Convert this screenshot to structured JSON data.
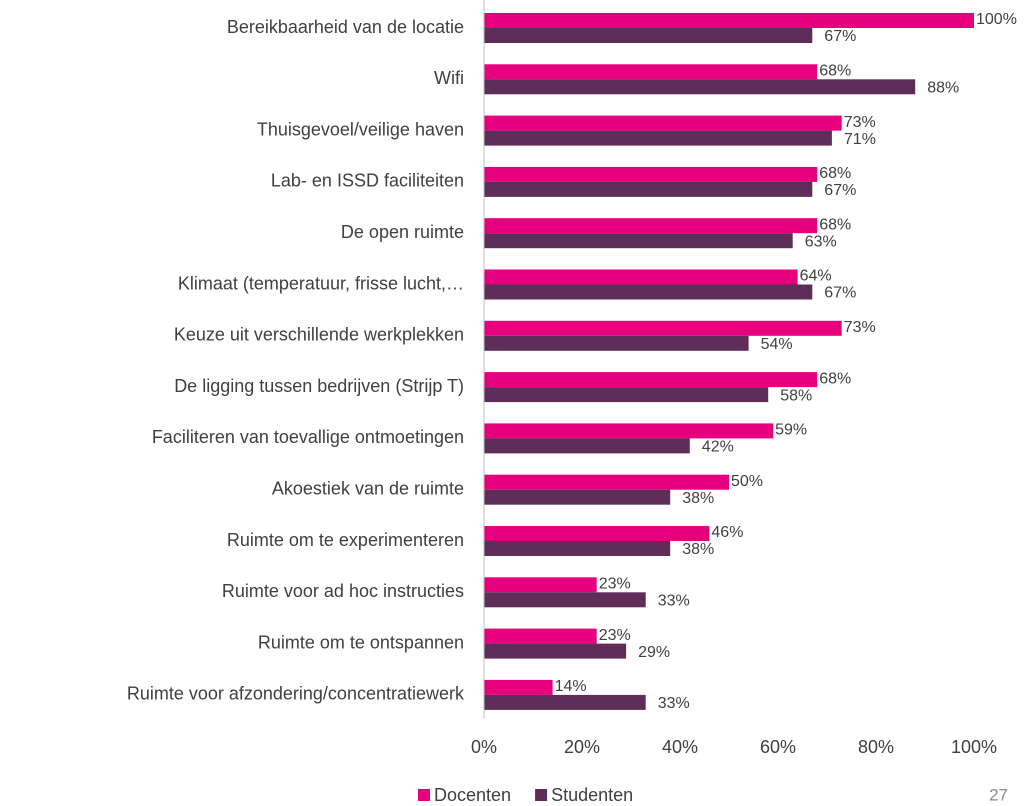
{
  "chart_data": {
    "type": "bar",
    "orientation": "horizontal",
    "categories": [
      "Bereikbaarheid van de locatie",
      "Wifi",
      "Thuisgevoel/veilige haven",
      "Lab- en ISSD faciliteiten",
      "De open ruimte",
      "Klimaat (temperatuur, frisse lucht,…",
      "Keuze uit verschillende werkplekken",
      "De ligging tussen bedrijven (Strijp T)",
      "Faciliteren van toevallige ontmoetingen",
      "Akoestiek van de ruimte",
      "Ruimte om te experimenteren",
      "Ruimte voor ad hoc instructies",
      "Ruimte om te ontspannen",
      "Ruimte voor afzondering/concentratiewerk"
    ],
    "series": [
      {
        "name": "Docenten",
        "color": "#e6007e",
        "values": [
          100,
          68,
          73,
          68,
          68,
          64,
          73,
          68,
          59,
          50,
          46,
          23,
          23,
          14
        ],
        "value_labels": [
          "100%",
          "68%",
          "73%",
          "68%",
          "68%",
          "64%",
          "73%",
          "68%",
          "59%",
          "50%",
          "46%",
          "23%",
          "23%",
          "14%"
        ]
      },
      {
        "name": "Studenten",
        "color": "#5f2d5a",
        "values": [
          67,
          88,
          71,
          67,
          63,
          67,
          54,
          58,
          42,
          38,
          38,
          33,
          29,
          33
        ],
        "value_labels": [
          "67%",
          "88%",
          "71%",
          "67%",
          "63%",
          "67%",
          "54%",
          "58%",
          "42%",
          "38%",
          "38%",
          "33%",
          "29%",
          "33%"
        ]
      }
    ],
    "xlim": [
      0,
      100
    ],
    "xticks": [
      {
        "value": 0,
        "label": "0%"
      },
      {
        "value": 20,
        "label": "20%"
      },
      {
        "value": 40,
        "label": "40%"
      },
      {
        "value": 60,
        "label": "60%"
      },
      {
        "value": 80,
        "label": "80%"
      },
      {
        "value": 100,
        "label": "100%"
      }
    ],
    "legend": "bottom"
  },
  "page_number": "27"
}
